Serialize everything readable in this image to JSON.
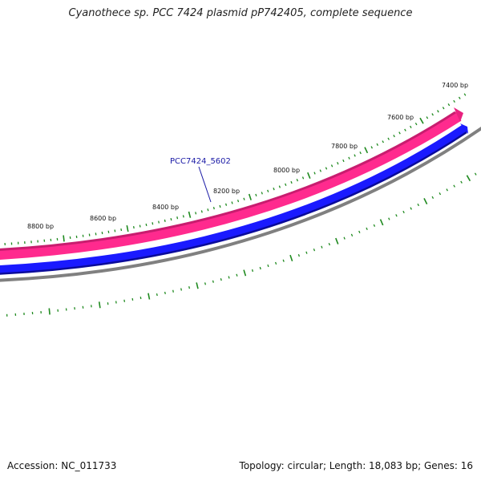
{
  "title": "Cyanothece sp. PCC 7424 plasmid pP742405, complete sequence",
  "gene_label": "PCC7424_5602",
  "ticks": [
    {
      "label": "7400 bp",
      "bp": 7400
    },
    {
      "label": "7600 bp",
      "bp": 7600
    },
    {
      "label": "7800 bp",
      "bp": 7800
    },
    {
      "label": "8000 bp",
      "bp": 8000
    },
    {
      "label": "8200 bp",
      "bp": 8200
    },
    {
      "label": "8400 bp",
      "bp": 8400
    },
    {
      "label": "8600 bp",
      "bp": 8600
    },
    {
      "label": "8800 bp",
      "bp": 8800
    }
  ],
  "colors": {
    "forward_feature": "#ff2a8e",
    "reverse_feature": "#1a1aff",
    "backbone": "#808080",
    "ticks": "#1f8a1f",
    "gene_label": "#1a1aa6"
  },
  "footer": {
    "accession": "Accession: NC_011733",
    "summary": "Topology: circular; Length: 18,083 bp; Genes: 16"
  }
}
